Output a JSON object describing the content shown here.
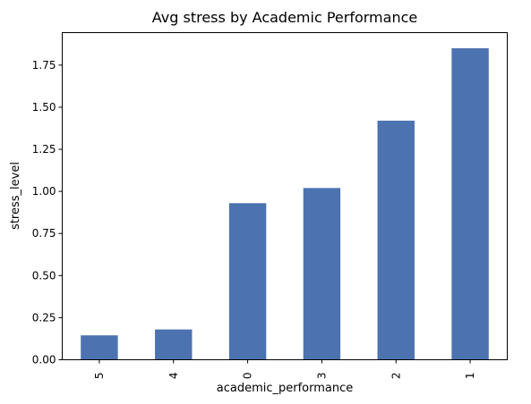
{
  "chart_data": {
    "type": "bar",
    "title": "Avg stress by Academic Performance",
    "xlabel": "academic_performance",
    "ylabel": "stress_level",
    "categories": [
      "5",
      "4",
      "0",
      "3",
      "2",
      "1"
    ],
    "values": [
      0.145,
      0.18,
      0.93,
      1.02,
      1.42,
      1.85
    ],
    "ylim": [
      0,
      1.943
    ],
    "yticks": [
      "0.00",
      "0.25",
      "0.50",
      "0.75",
      "1.00",
      "1.25",
      "1.50",
      "1.75"
    ],
    "bar_color": "#4c72b0",
    "grid": false,
    "legend": "none"
  }
}
